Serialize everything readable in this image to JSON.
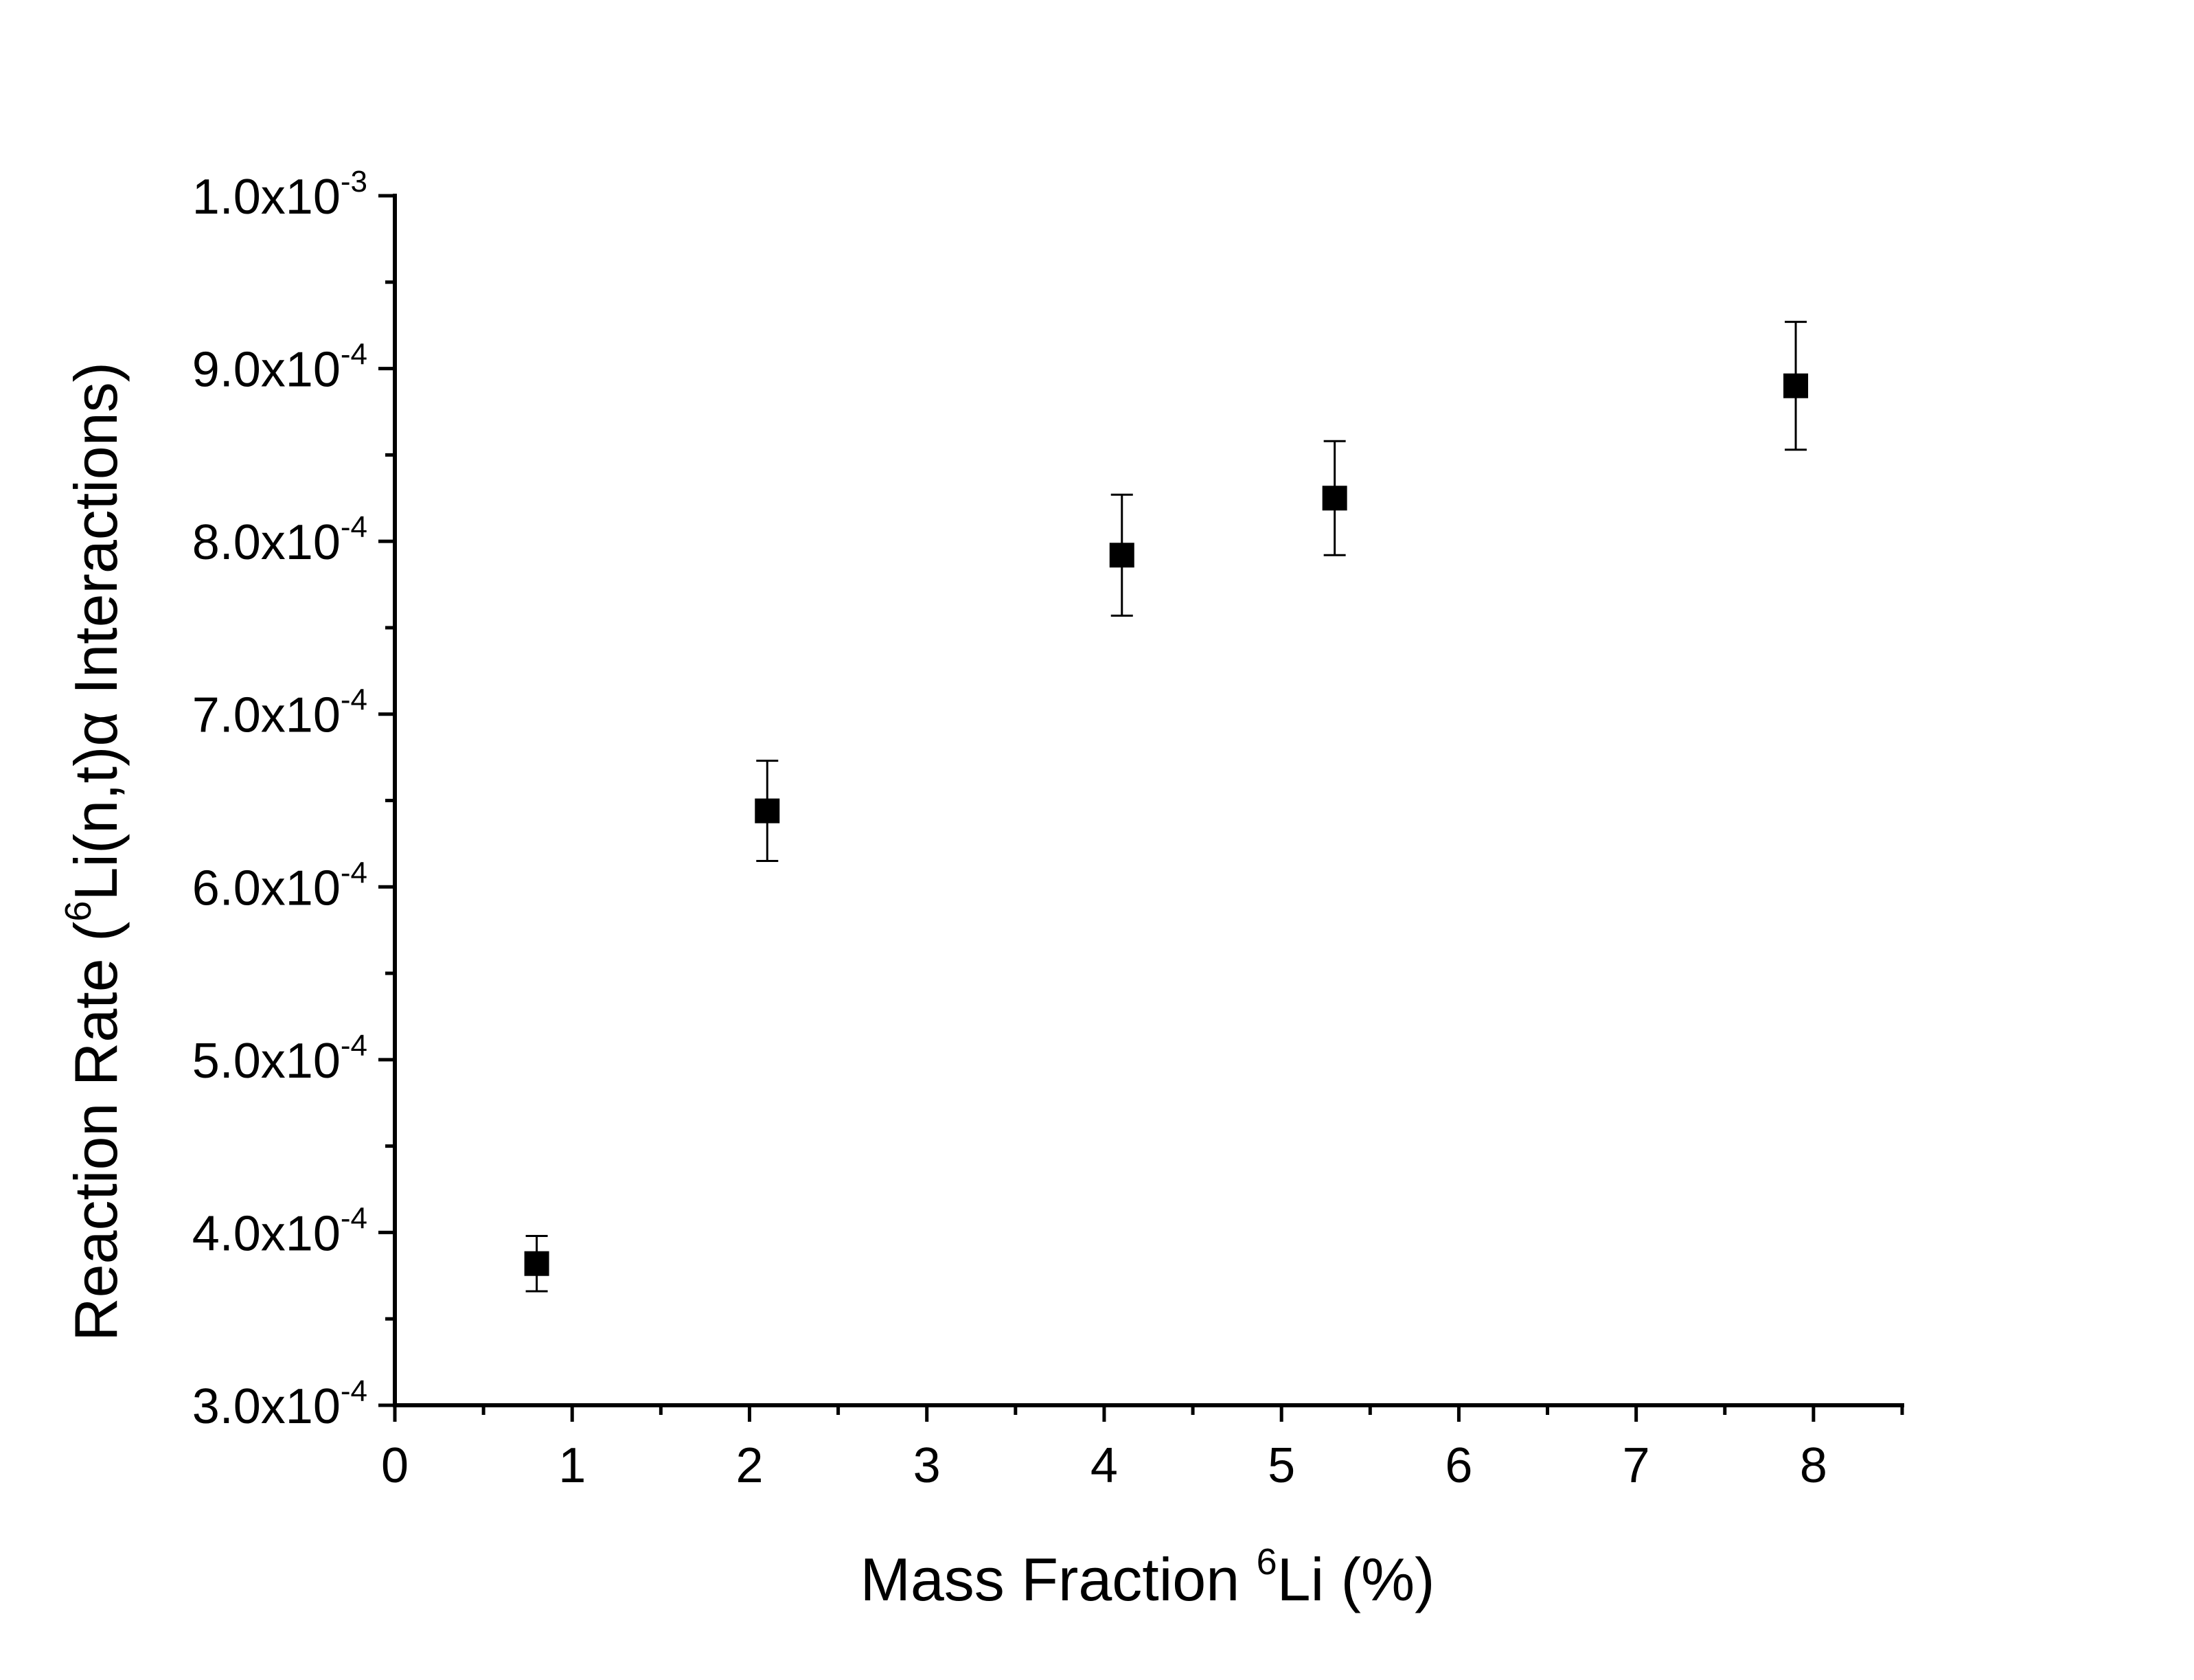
{
  "chart_data": {
    "type": "scatter",
    "title": "",
    "xlabel": {
      "prefix": "Mass Fraction ",
      "sup": "6",
      "suffix": "Li (%)"
    },
    "ylabel": {
      "prefix": "Reaction Rate (",
      "sup": "6",
      "suffix": "Li(n,t)α Interactions)"
    },
    "xlim": [
      0,
      8.5
    ],
    "ylim": [
      0.0003,
      0.001
    ],
    "x_ticks": [
      0,
      1,
      2,
      3,
      4,
      5,
      6,
      7,
      8
    ],
    "x_tick_labels": [
      "0",
      "1",
      "2",
      "3",
      "4",
      "5",
      "6",
      "7",
      "8"
    ],
    "x_minor_step": 0.5,
    "y_ticks": [
      0.0003,
      0.0004,
      0.0005,
      0.0006,
      0.0007,
      0.0008,
      0.0009,
      0.001
    ],
    "y_tick_labels": [
      {
        "mantissa": "3.0x10",
        "exponent": "-4"
      },
      {
        "mantissa": "4.0x10",
        "exponent": "-4"
      },
      {
        "mantissa": "5.0x10",
        "exponent": "-4"
      },
      {
        "mantissa": "6.0x10",
        "exponent": "-4"
      },
      {
        "mantissa": "7.0x10",
        "exponent": "-4"
      },
      {
        "mantissa": "8.0x10",
        "exponent": "-4"
      },
      {
        "mantissa": "9.0x10",
        "exponent": "-4"
      },
      {
        "mantissa": "1.0x10",
        "exponent": "-3"
      }
    ],
    "y_minor_step": 5e-05,
    "grid": false,
    "legend": "none",
    "marker": "square",
    "marker_color": "#000000",
    "series": [
      {
        "x": [
          0.8,
          2.1,
          4.1,
          5.3,
          7.9
        ],
        "y": [
          0.000382,
          0.000644,
          0.000792,
          0.000825,
          0.00089
        ],
        "y_err": [
          1.6e-05,
          2.9e-05,
          3.5e-05,
          3.3e-05,
          3.7e-05
        ]
      }
    ]
  }
}
